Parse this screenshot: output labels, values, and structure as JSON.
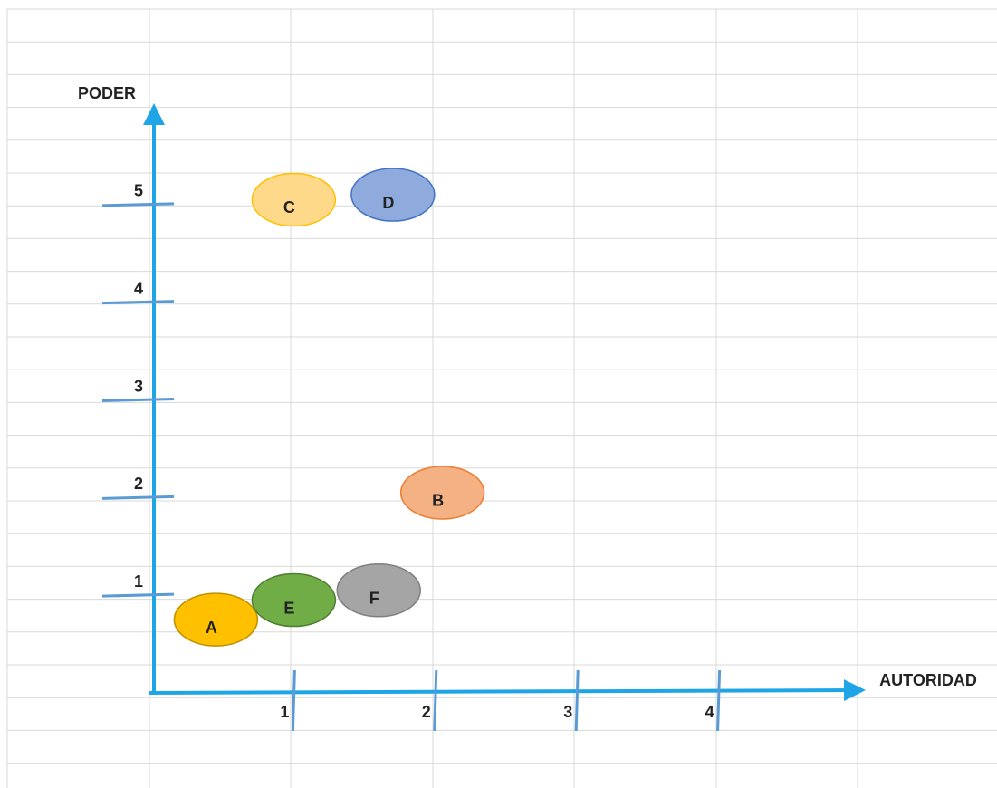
{
  "chart_data": {
    "type": "scatter",
    "xlabel": "AUTORIDAD",
    "ylabel": "PODER",
    "xlim": [
      0,
      5
    ],
    "ylim": [
      0,
      6
    ],
    "xticks": [
      1,
      2,
      3,
      4
    ],
    "yticks": [
      1,
      2,
      3,
      4,
      5
    ],
    "labels": [
      "A",
      "E",
      "F",
      "B",
      "C",
      "D"
    ],
    "x": [
      0.45,
      1,
      1.6,
      2.05,
      1,
      1.7
    ],
    "values": [
      0.75,
      0.95,
      1.05,
      2.05,
      5.05,
      5.1
    ],
    "colors": [
      "#ffc000",
      "#70ad47",
      "#a5a5a5",
      "#f4b183",
      "#ffd98a",
      "#8faadc"
    ],
    "edge_colors": [
      "#bf9000",
      "#507e32",
      "#7f7f7f",
      "#ed7d31",
      "#ffc000",
      "#4472c4"
    ]
  }
}
